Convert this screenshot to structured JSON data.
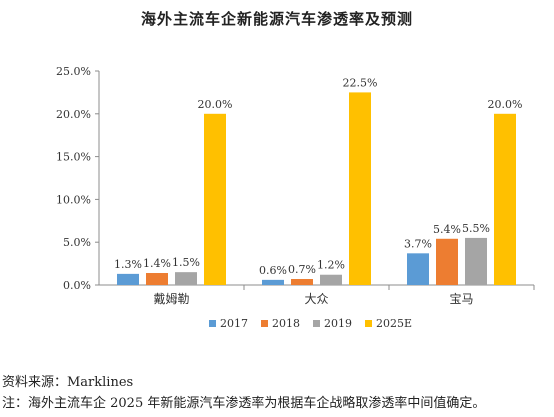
{
  "chart_data": {
    "type": "bar",
    "title": "海外主流车企新能源汽车渗透率及预测",
    "categories": [
      "戴姆勒",
      "大众",
      "宝马"
    ],
    "series": [
      {
        "name": "2017",
        "color": "#5B9BD5",
        "values": [
          1.3,
          0.6,
          3.7
        ],
        "labels": [
          "1.3%",
          "0.6%",
          "3.7%"
        ]
      },
      {
        "name": "2018",
        "color": "#ED7D31",
        "values": [
          1.4,
          0.7,
          5.4
        ],
        "labels": [
          "1.4%",
          "0.7%",
          "5.4%"
        ]
      },
      {
        "name": "2019",
        "color": "#A5A5A5",
        "values": [
          1.5,
          1.2,
          5.5
        ],
        "labels": [
          "1.5%",
          "1.2%",
          "5.5%"
        ]
      },
      {
        "name": "2025E",
        "color": "#FFC000",
        "values": [
          20.0,
          22.5,
          20.0
        ],
        "labels": [
          "20.0%",
          "22.5%",
          "20.0%"
        ]
      }
    ],
    "ylim": [
      0,
      25
    ],
    "yticks": [
      0,
      5,
      10,
      15,
      20,
      25
    ],
    "ytick_labels": [
      "0.0%",
      "5.0%",
      "10.0%",
      "15.0%",
      "20.0%",
      "25.0%"
    ],
    "xlabel": "",
    "ylabel": "",
    "grid": false,
    "legend_position": "bottom"
  },
  "footer": {
    "source": "资料来源：Marklines",
    "note": "注：海外主流车企 2025 年新能源汽车渗透率为根据车企战略取渗透率中间值确定。"
  }
}
